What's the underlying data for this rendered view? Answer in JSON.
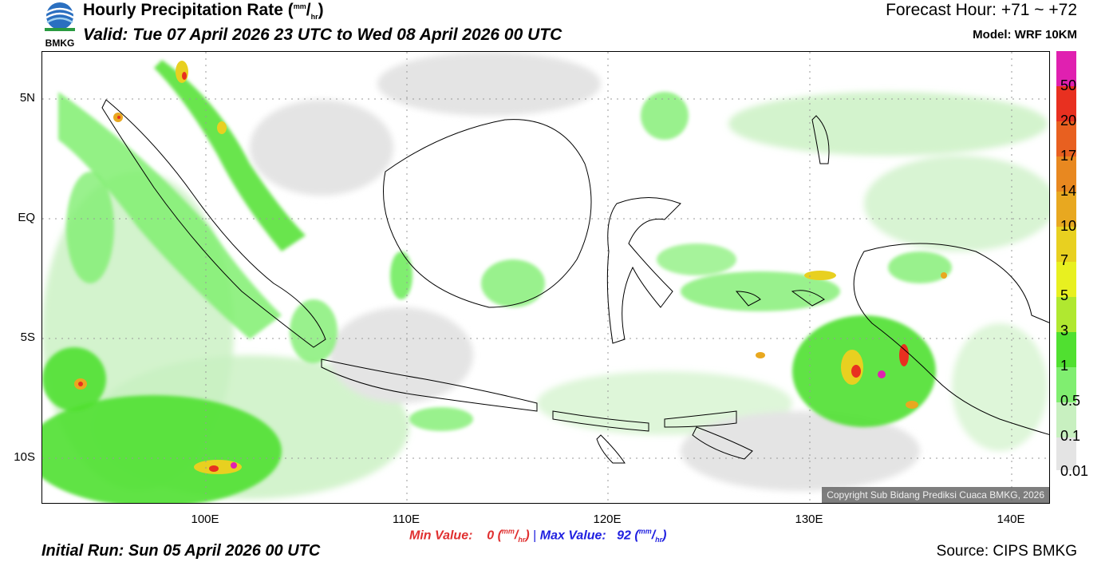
{
  "header": {
    "title_text": "Hourly Precipitation Rate (",
    "title_unit_sup": "mm",
    "title_unit_slash": "/",
    "title_unit_sub": "hr",
    "title_close": ")",
    "valid": "Valid: Tue 07 April 2026 23 UTC to Wed 08 April 2026 00 UTC",
    "forecast_hour": "Forecast Hour: +71 ~ +72",
    "model": "Model: WRF 10KM",
    "logo_text": "BMKG"
  },
  "map": {
    "lat_labels": [
      "5N",
      "EQ",
      "5S",
      "10S"
    ],
    "lon_labels": [
      "100E",
      "110E",
      "120E",
      "130E",
      "140E"
    ],
    "copyright": "Copyright Sub Bidang Prediksi Cuaca BMKG, 2026"
  },
  "legend": {
    "labels": [
      "50",
      "20",
      "17",
      "14",
      "10",
      "7",
      "5",
      "3",
      "1",
      "0.5",
      "0.1",
      "0.01"
    ],
    "colors": [
      "#e020b0",
      "#e83020",
      "#e86020",
      "#e88820",
      "#e8a820",
      "#e8d020",
      "#e8f020",
      "#b0e830",
      "#50e030",
      "#80ee70",
      "#c8f0c0",
      "#e4e4e4"
    ]
  },
  "stats": {
    "min_label": "Min Value:",
    "min_value": "0",
    "max_label": "Max Value:",
    "max_value": "92",
    "unit_sup": "mm",
    "unit_slash": "/",
    "unit_sub": "hr",
    "separator": "|"
  },
  "footer": {
    "initial_run": "Initial Run: Sun 05 April 2026 00 UTC",
    "source": "Source: CIPS BMKG"
  }
}
